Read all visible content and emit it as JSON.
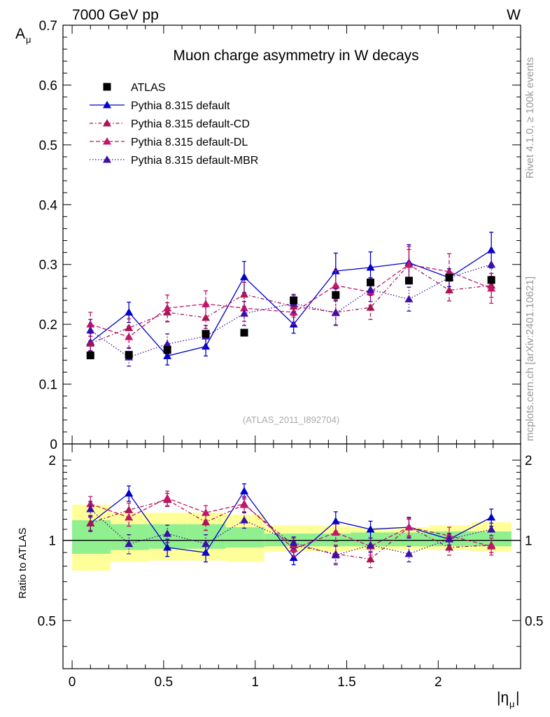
{
  "header": {
    "left": "7000 GeV pp",
    "right": "W"
  },
  "side_labels": {
    "rivet": "Rivet 4.1.0, ≥ 100k events",
    "mcplots": "mcplots.cern.ch [arXiv:2401.10621]"
  },
  "chart_data": [
    {
      "type": "line",
      "panel": "main",
      "title": "Muon charge asymmetry in W decays",
      "analysis_label": "(ATLAS_2011_I892704)",
      "xlabel": "|ημ|",
      "ylabel": "Aμ",
      "xlim": [
        -0.05,
        2.45
      ],
      "ylim": [
        0,
        0.7
      ],
      "y_ticks": [
        0,
        0.1,
        0.2,
        0.3,
        0.4,
        0.5,
        0.6,
        0.7
      ],
      "y_tick_labels": [
        "0",
        "0.1",
        "0.2",
        "0.3",
        "0.4",
        "0.5",
        "0.6",
        "0.7"
      ],
      "legend_position": "top-left",
      "x": [
        0.1,
        0.31,
        0.52,
        0.73,
        0.94,
        1.21,
        1.44,
        1.63,
        1.84,
        2.06,
        2.29
      ],
      "series": [
        {
          "name": "ATLAS",
          "color": "#000000",
          "marker": "square",
          "values": [
            0.148,
            0.149,
            0.157,
            0.184,
            0.186,
            0.24,
            0.249,
            0.27,
            0.273,
            0.278,
            0.274
          ]
        },
        {
          "name": "Pythia 8.315 default",
          "color": "#0000cc",
          "marker": "triangle",
          "dash": "solid",
          "values": [
            0.17,
            0.22,
            0.147,
            0.163,
            0.279,
            0.2,
            0.289,
            0.295,
            0.303,
            0.278,
            0.324
          ],
          "errors": [
            0.015,
            0.017,
            0.015,
            0.016,
            0.026,
            0.015,
            0.03,
            0.026,
            0.03,
            0.015,
            0.03
          ]
        },
        {
          "name": "Pythia 8.315 default-CD",
          "color": "#a81450",
          "marker": "triangle",
          "dash": "dashdot",
          "values": [
            0.168,
            0.194,
            0.22,
            0.211,
            0.25,
            0.23,
            0.22,
            0.228,
            0.3,
            0.257,
            0.265
          ],
          "errors": [
            0.012,
            0.015,
            0.016,
            0.018,
            0.02,
            0.018,
            0.022,
            0.02,
            0.025,
            0.018,
            0.02
          ]
        },
        {
          "name": "Pythia 8.315 default-DL",
          "color": "#c2166a",
          "marker": "triangle",
          "dash": "dashed",
          "values": [
            0.2,
            0.179,
            0.227,
            0.234,
            0.227,
            0.22,
            0.265,
            0.254,
            0.3,
            0.288,
            0.26
          ],
          "errors": [
            0.02,
            0.018,
            0.022,
            0.022,
            0.022,
            0.02,
            0.025,
            0.022,
            0.03,
            0.03,
            0.025
          ]
        },
        {
          "name": "Pythia 8.315 default-MBR",
          "color": "#3c10a8",
          "marker": "triangle",
          "dash": "dotted",
          "values": [
            0.19,
            0.145,
            0.167,
            0.18,
            0.218,
            0.235,
            0.219,
            0.258,
            0.242,
            0.278,
            0.3
          ],
          "errors": [
            0.018,
            0.015,
            0.017,
            0.018,
            0.02,
            0.015,
            0.02,
            0.02,
            0.02,
            0.015,
            0.02
          ]
        }
      ]
    },
    {
      "type": "line",
      "panel": "ratio",
      "xlabel": "|ημ|",
      "ylabel": "Ratio to ATLAS",
      "xlim": [
        -0.05,
        2.45
      ],
      "ylim": [
        0.33,
        2.3
      ],
      "y_log": true,
      "y_ticks": [
        0.5,
        1,
        2
      ],
      "y_tick_labels": [
        "0.5",
        "1",
        "2"
      ],
      "x_ticks": [
        0,
        0.5,
        1,
        1.5,
        2
      ],
      "x_tick_labels": [
        "0",
        "0.5",
        "1",
        "1.5",
        "2"
      ],
      "bin_edges": [
        0,
        0.21,
        0.42,
        0.63,
        0.84,
        1.05,
        1.37,
        1.52,
        1.74,
        1.95,
        2.18,
        2.4
      ],
      "band_inner": {
        "color": "#90f090",
        "low": [
          0.89,
          0.92,
          0.93,
          0.93,
          0.94,
          0.95,
          0.95,
          0.95,
          0.95,
          0.95,
          0.95
        ],
        "high": [
          1.19,
          1.15,
          1.15,
          1.15,
          1.12,
          1.06,
          1.06,
          1.07,
          1.07,
          1.08,
          1.08
        ]
      },
      "band_outer": {
        "color": "#ffff99",
        "low": [
          0.77,
          0.83,
          0.84,
          0.84,
          0.83,
          0.91,
          0.91,
          0.92,
          0.92,
          0.92,
          0.91
        ],
        "high": [
          1.36,
          1.27,
          1.27,
          1.27,
          1.25,
          1.14,
          1.13,
          1.12,
          1.12,
          1.14,
          1.17
        ]
      },
      "x": [
        0.1,
        0.31,
        0.52,
        0.73,
        0.94,
        1.21,
        1.44,
        1.63,
        1.84,
        2.06,
        2.29
      ],
      "series": [
        {
          "name": "Pythia 8.315 default",
          "color": "#0000cc",
          "dash": "solid",
          "values": [
            1.16,
            1.5,
            0.94,
            0.9,
            1.53,
            0.86,
            1.18,
            1.1,
            1.12,
            1.01,
            1.22
          ],
          "errors": [
            0.08,
            0.1,
            0.07,
            0.07,
            0.1,
            0.05,
            0.1,
            0.08,
            0.1,
            0.05,
            0.09
          ]
        },
        {
          "name": "Pythia 8.315 default-CD",
          "color": "#a81450",
          "dash": "dashdot",
          "values": [
            1.16,
            1.3,
            1.42,
            1.17,
            1.36,
            0.96,
            0.89,
            0.85,
            1.12,
            0.94,
            0.96
          ],
          "errors": [
            0.07,
            0.08,
            0.08,
            0.08,
            0.09,
            0.06,
            0.07,
            0.06,
            0.08,
            0.06,
            0.06
          ]
        },
        {
          "name": "Pythia 8.315 default-DL",
          "color": "#c2166a",
          "dash": "dashed",
          "values": [
            1.37,
            1.22,
            1.44,
            1.27,
            1.37,
            0.93,
            1.07,
            0.95,
            1.12,
            1.04,
            0.95
          ],
          "errors": [
            0.09,
            0.09,
            0.09,
            0.08,
            0.09,
            0.06,
            0.08,
            0.07,
            0.09,
            0.08,
            0.07
          ]
        },
        {
          "name": "Pythia 8.315 default-MBR",
          "color": "#3c10a8",
          "dash": "dotted",
          "values": [
            1.31,
            0.97,
            1.06,
            0.97,
            1.19,
            0.98,
            0.88,
            0.96,
            0.89,
            1.01,
            1.1
          ],
          "errors": [
            0.09,
            0.08,
            0.08,
            0.08,
            0.08,
            0.05,
            0.07,
            0.06,
            0.06,
            0.05,
            0.06
          ]
        }
      ]
    }
  ]
}
